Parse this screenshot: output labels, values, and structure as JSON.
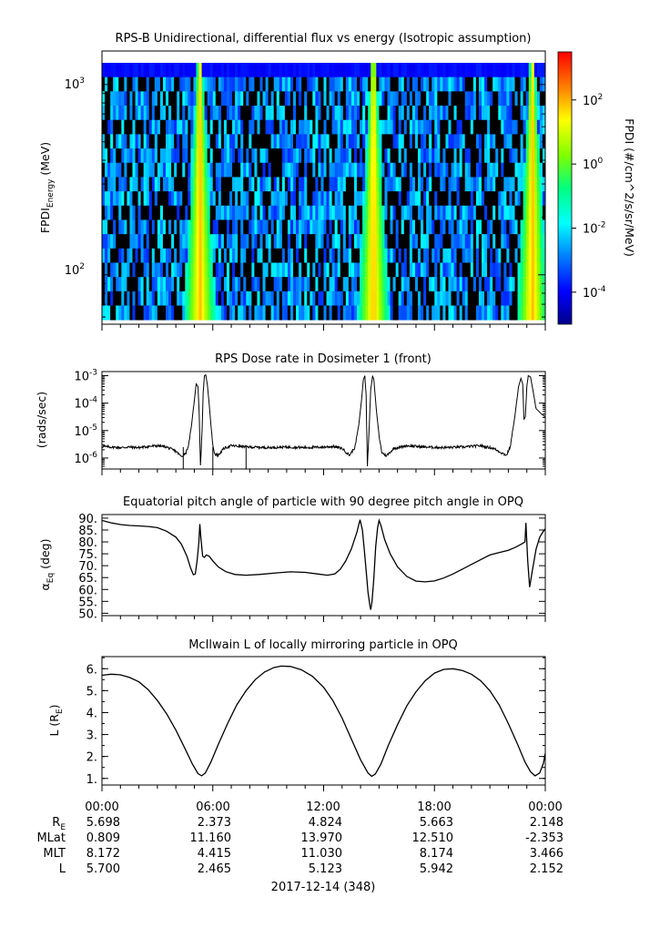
{
  "figure": {
    "date_label": "2017-12-14 (348)"
  },
  "chart_data": [
    {
      "type": "heatmap",
      "title": "RPS-B  Unidirectional, differential flux vs energy (Isotropic assumption)",
      "ylabel_main": "FPDI",
      "ylabel_sub": "Energy",
      "ylabel_unit": " (MeV)",
      "yscale": "log",
      "ylim": [
        55,
        1500
      ],
      "yticks": [
        {
          "value": 100,
          "base": "10",
          "exp": "2"
        },
        {
          "value": 1000,
          "base": "10",
          "exp": "3"
        }
      ],
      "x_hours": [
        0,
        24
      ],
      "energy_channels": 18,
      "belt_crossings_hours": [
        5.3,
        14.7,
        23.3
      ],
      "colorbar": {
        "label": "FPDI (#/cm^2/s/sr/MeV)",
        "log_range": [
          -5,
          3.5
        ],
        "ticks": [
          {
            "base": "10",
            "exp": "-4",
            "log": -4
          },
          {
            "base": "10",
            "exp": "-2",
            "log": -2
          },
          {
            "base": "10",
            "exp": "0",
            "log": 0
          },
          {
            "base": "10",
            "exp": "2",
            "log": 2
          }
        ],
        "colors": [
          "#00008b",
          "#0000ff",
          "#007fff",
          "#00ffff",
          "#00ff7f",
          "#7fff00",
          "#ffff00",
          "#ff7f00",
          "#ff0000"
        ]
      }
    },
    {
      "type": "line",
      "title": "RPS  Dose rate in Dosimeter 1 (front)",
      "ylabel": "(rads/sec)",
      "yscale": "log",
      "ylim_log": [
        -6.4,
        -2.85
      ],
      "yticks": [
        {
          "base": "10",
          "exp": "-6",
          "log": -6
        },
        {
          "base": "10",
          "exp": "-5",
          "log": -5
        },
        {
          "base": "10",
          "exp": "-4",
          "log": -4
        },
        {
          "base": "10",
          "exp": "-3",
          "log": -3
        }
      ],
      "series": [
        {
          "name": "dose_rate",
          "points_log": [
            [
              0.0,
              -5.58
            ],
            [
              0.5,
              -5.6
            ],
            [
              1.0,
              -5.62
            ],
            [
              1.5,
              -5.6
            ],
            [
              2.0,
              -5.62
            ],
            [
              2.5,
              -5.58
            ],
            [
              3.0,
              -5.55
            ],
            [
              3.5,
              -5.6
            ],
            [
              4.0,
              -5.75
            ],
            [
              4.3,
              -5.95
            ],
            [
              4.55,
              -5.8
            ],
            [
              4.7,
              -5.5
            ],
            [
              4.85,
              -4.8
            ],
            [
              5.0,
              -3.9
            ],
            [
              5.1,
              -3.3
            ],
            [
              5.2,
              -3.4
            ],
            [
              5.27,
              -4.5
            ],
            [
              5.33,
              -6.3
            ],
            [
              5.42,
              -5.0
            ],
            [
              5.48,
              -3.6
            ],
            [
              5.55,
              -3.0
            ],
            [
              5.62,
              -2.97
            ],
            [
              5.7,
              -3.3
            ],
            [
              5.8,
              -4.0
            ],
            [
              5.9,
              -4.8
            ],
            [
              6.0,
              -5.5
            ],
            [
              6.1,
              -5.85
            ],
            [
              6.3,
              -5.9
            ],
            [
              6.6,
              -5.65
            ],
            [
              7.0,
              -5.55
            ],
            [
              8.0,
              -5.6
            ],
            [
              9.0,
              -5.62
            ],
            [
              10.0,
              -5.6
            ],
            [
              11.0,
              -5.62
            ],
            [
              12.0,
              -5.6
            ],
            [
              12.5,
              -5.58
            ],
            [
              13.0,
              -5.65
            ],
            [
              13.4,
              -5.9
            ],
            [
              13.7,
              -5.6
            ],
            [
              13.9,
              -4.8
            ],
            [
              14.05,
              -3.9
            ],
            [
              14.15,
              -3.15
            ],
            [
              14.23,
              -3.0
            ],
            [
              14.3,
              -3.7
            ],
            [
              14.37,
              -6.3
            ],
            [
              14.46,
              -5.0
            ],
            [
              14.55,
              -3.5
            ],
            [
              14.65,
              -3.0
            ],
            [
              14.72,
              -3.15
            ],
            [
              14.85,
              -4.2
            ],
            [
              15.0,
              -5.2
            ],
            [
              15.15,
              -5.8
            ],
            [
              15.4,
              -5.92
            ],
            [
              15.8,
              -5.65
            ],
            [
              16.5,
              -5.55
            ],
            [
              17.5,
              -5.6
            ],
            [
              18.5,
              -5.62
            ],
            [
              19.5,
              -5.6
            ],
            [
              20.5,
              -5.55
            ],
            [
              21.2,
              -5.65
            ],
            [
              21.6,
              -5.8
            ],
            [
              21.9,
              -5.9
            ],
            [
              22.1,
              -5.6
            ],
            [
              22.35,
              -4.5
            ],
            [
              22.55,
              -3.4
            ],
            [
              22.68,
              -3.1
            ],
            [
              22.78,
              -3.3
            ],
            [
              22.84,
              -4.6
            ],
            [
              22.92,
              -4.5
            ],
            [
              23.0,
              -3.4
            ],
            [
              23.08,
              -3.0
            ],
            [
              23.2,
              -3.05
            ],
            [
              23.35,
              -3.6
            ],
            [
              23.5,
              -4.2
            ],
            [
              23.65,
              -4.3
            ],
            [
              23.8,
              -4.4
            ],
            [
              24.0,
              -4.5
            ]
          ]
        }
      ]
    },
    {
      "type": "line",
      "title": "Equatorial pitch angle of particle with 90 degree pitch angle in OPQ",
      "ylabel_main": "α",
      "ylabel_sub": "Eq",
      "ylabel_unit": " (deg)",
      "ylim": [
        49,
        91.5
      ],
      "yticks": [
        50,
        55,
        60,
        65,
        70,
        75,
        80,
        85,
        90
      ],
      "series": [
        {
          "name": "alpha_eq",
          "points": [
            [
              0.0,
              89.0
            ],
            [
              0.5,
              88.0
            ],
            [
              1.0,
              87.3
            ],
            [
              1.5,
              86.9
            ],
            [
              2.0,
              86.7
            ],
            [
              2.5,
              86.5
            ],
            [
              3.0,
              86.0
            ],
            [
              3.5,
              84.5
            ],
            [
              4.0,
              82.0
            ],
            [
              4.3,
              79.0
            ],
            [
              4.6,
              74.0
            ],
            [
              4.8,
              69.0
            ],
            [
              4.95,
              66.2
            ],
            [
              5.05,
              66.5
            ],
            [
              5.15,
              72.0
            ],
            [
              5.25,
              80.0
            ],
            [
              5.3,
              87.5
            ],
            [
              5.35,
              82.0
            ],
            [
              5.45,
              74.0
            ],
            [
              5.55,
              73.5
            ],
            [
              5.65,
              74.5
            ],
            [
              5.8,
              74.0
            ],
            [
              6.0,
              72.0
            ],
            [
              6.3,
              69.5
            ],
            [
              6.7,
              67.5
            ],
            [
              7.2,
              66.3
            ],
            [
              7.8,
              66.0
            ],
            [
              8.5,
              66.3
            ],
            [
              9.5,
              67.0
            ],
            [
              10.2,
              67.4
            ],
            [
              11.0,
              67.2
            ],
            [
              11.7,
              66.5
            ],
            [
              12.2,
              66.0
            ],
            [
              12.6,
              66.5
            ],
            [
              12.9,
              68.5
            ],
            [
              13.2,
              72.0
            ],
            [
              13.5,
              77.0
            ],
            [
              13.8,
              84.0
            ],
            [
              13.97,
              89.3
            ],
            [
              14.1,
              85.0
            ],
            [
              14.2,
              77.0
            ],
            [
              14.3,
              68.0
            ],
            [
              14.4,
              59.0
            ],
            [
              14.5,
              53.5
            ],
            [
              14.55,
              51.5
            ],
            [
              14.62,
              55.0
            ],
            [
              14.72,
              65.0
            ],
            [
              14.82,
              78.0
            ],
            [
              14.92,
              86.0
            ],
            [
              15.0,
              89.0
            ],
            [
              15.1,
              87.0
            ],
            [
              15.3,
              81.0
            ],
            [
              15.6,
              75.0
            ],
            [
              16.0,
              69.5
            ],
            [
              16.5,
              65.5
            ],
            [
              17.0,
              63.5
            ],
            [
              17.5,
              63.2
            ],
            [
              18.0,
              63.6
            ],
            [
              18.5,
              64.8
            ],
            [
              19.0,
              66.5
            ],
            [
              19.5,
              68.5
            ],
            [
              20.0,
              70.5
            ],
            [
              20.5,
              72.5
            ],
            [
              21.0,
              74.5
            ],
            [
              21.5,
              75.5
            ],
            [
              22.0,
              76.5
            ],
            [
              22.4,
              77.8
            ],
            [
              22.7,
              79.0
            ],
            [
              22.9,
              80.0
            ],
            [
              22.95,
              88.0
            ],
            [
              23.0,
              80.0
            ],
            [
              23.05,
              72.0
            ],
            [
              23.15,
              61.0
            ],
            [
              23.3,
              68.0
            ],
            [
              23.5,
              77.0
            ],
            [
              23.7,
              82.0
            ],
            [
              23.9,
              84.5
            ],
            [
              24.0,
              85.5
            ]
          ]
        }
      ]
    },
    {
      "type": "line",
      "title": "McIlwain L of locally mirroring particle in OPQ",
      "ylabel_main": "L (R",
      "ylabel_sub": "E",
      "ylabel_unit": ")",
      "ylim": [
        0.7,
        6.55
      ],
      "yticks": [
        1,
        2,
        3,
        4,
        5,
        6
      ],
      "series": [
        {
          "name": "L_shell",
          "points": [
            [
              0.0,
              5.7
            ],
            [
              0.5,
              5.75
            ],
            [
              1.0,
              5.72
            ],
            [
              1.5,
              5.6
            ],
            [
              2.0,
              5.4
            ],
            [
              2.5,
              5.05
            ],
            [
              3.0,
              4.55
            ],
            [
              3.5,
              3.95
            ],
            [
              4.0,
              3.2
            ],
            [
              4.5,
              2.35
            ],
            [
              4.9,
              1.65
            ],
            [
              5.2,
              1.22
            ],
            [
              5.4,
              1.12
            ],
            [
              5.6,
              1.25
            ],
            [
              5.9,
              1.75
            ],
            [
              6.3,
              2.55
            ],
            [
              6.8,
              3.5
            ],
            [
              7.3,
              4.35
            ],
            [
              7.8,
              5.0
            ],
            [
              8.3,
              5.5
            ],
            [
              8.8,
              5.85
            ],
            [
              9.3,
              6.05
            ],
            [
              9.7,
              6.12
            ],
            [
              10.2,
              6.1
            ],
            [
              10.8,
              5.95
            ],
            [
              11.4,
              5.65
            ],
            [
              12.0,
              5.15
            ],
            [
              12.5,
              4.55
            ],
            [
              13.0,
              3.75
            ],
            [
              13.5,
              2.8
            ],
            [
              14.0,
              1.85
            ],
            [
              14.4,
              1.25
            ],
            [
              14.6,
              1.1
            ],
            [
              14.8,
              1.2
            ],
            [
              15.1,
              1.65
            ],
            [
              15.5,
              2.5
            ],
            [
              16.0,
              3.45
            ],
            [
              16.5,
              4.3
            ],
            [
              17.0,
              4.95
            ],
            [
              17.5,
              5.45
            ],
            [
              18.0,
              5.8
            ],
            [
              18.5,
              5.97
            ],
            [
              19.0,
              6.0
            ],
            [
              19.5,
              5.92
            ],
            [
              20.0,
              5.75
            ],
            [
              20.5,
              5.45
            ],
            [
              21.0,
              5.0
            ],
            [
              21.5,
              4.35
            ],
            [
              22.0,
              3.5
            ],
            [
              22.5,
              2.55
            ],
            [
              22.9,
              1.75
            ],
            [
              23.2,
              1.3
            ],
            [
              23.45,
              1.12
            ],
            [
              23.7,
              1.25
            ],
            [
              23.9,
              1.7
            ],
            [
              24.0,
              2.15
            ]
          ]
        }
      ]
    }
  ],
  "time_axis": {
    "tick_labels": [
      "00:00",
      "06:00",
      "12:00",
      "18:00",
      "00:00"
    ],
    "rows": [
      {
        "label_main": "R",
        "label_sub": "E",
        "values": [
          "5.698",
          "2.373",
          "4.824",
          "5.663",
          "2.148"
        ]
      },
      {
        "label_main": "MLat",
        "label_sub": "",
        "values": [
          "0.809",
          "11.160",
          "13.970",
          "12.510",
          "-2.353"
        ]
      },
      {
        "label_main": "MLT",
        "label_sub": "",
        "values": [
          "8.172",
          "4.415",
          "11.030",
          "8.174",
          "3.466"
        ]
      },
      {
        "label_main": "L",
        "label_sub": "",
        "values": [
          "5.700",
          "2.465",
          "5.123",
          "5.942",
          "2.152"
        ]
      }
    ]
  }
}
